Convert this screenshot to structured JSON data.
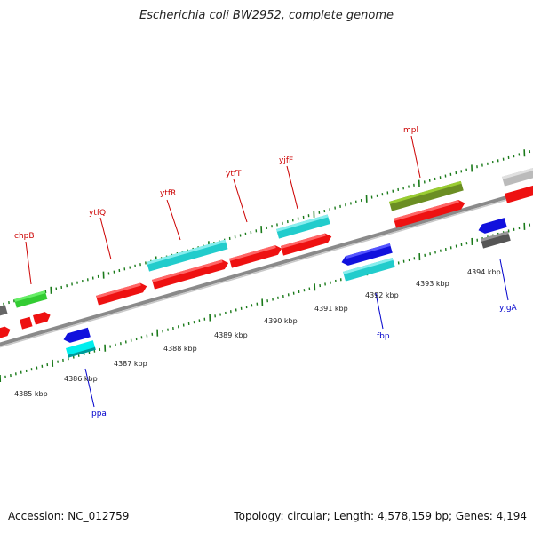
{
  "title": "Escherichia coli BW2952, complete genome",
  "footer": {
    "accession": "Accession: NC_012759",
    "summary": "Topology: circular; Length: 4,578,159 bp; Genes: 4,194"
  },
  "colors": {
    "forward_label": "#cc0000",
    "reverse_label": "#0000cc",
    "backbone": "#808080",
    "ticks": "#1a7a1a"
  },
  "scale_labels": [
    "4385 kbp",
    "4386 kbp",
    "4387 kbp",
    "4388 kbp",
    "4389 kbp",
    "4390 kbp",
    "4391 kbp",
    "4392 kbp",
    "4393 kbp",
    "4394 kbp"
  ],
  "gene_labels": [
    {
      "name": "chpB",
      "strand": "forward"
    },
    {
      "name": "ytfQ",
      "strand": "forward"
    },
    {
      "name": "ytfR",
      "strand": "forward"
    },
    {
      "name": "ytfT",
      "strand": "forward"
    },
    {
      "name": "yjfF",
      "strand": "forward"
    },
    {
      "name": "mpl",
      "strand": "forward"
    },
    {
      "name": "ppa",
      "strand": "reverse"
    },
    {
      "name": "fbp",
      "strand": "reverse"
    },
    {
      "name": "yjgA",
      "strand": "reverse"
    }
  ]
}
